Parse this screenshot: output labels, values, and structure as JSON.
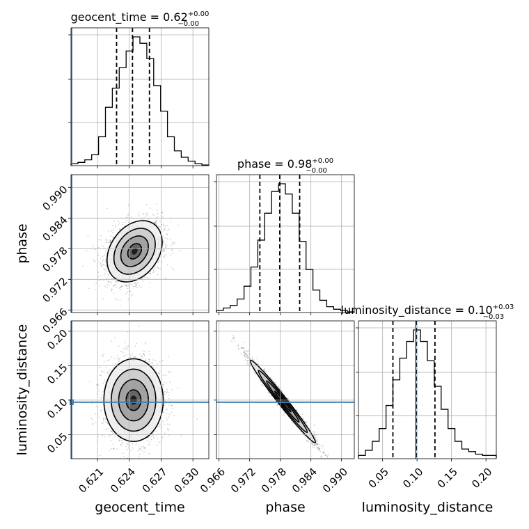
{
  "chart_data": {
    "type": "corner",
    "parameters": [
      {
        "name": "geocent_time",
        "label": "geocent_time",
        "title": "geocent_time = 0.62",
        "title_plus": "+0.00",
        "title_minus": "−0.00",
        "range": [
          0.6185,
          0.6315
        ],
        "ticks": [
          0.621,
          0.624,
          0.627,
          0.63
        ],
        "tick_labels": [
          "0.621",
          "0.624",
          "0.627",
          "0.630"
        ],
        "quantiles": [
          0.6228,
          0.6243,
          0.6259
        ],
        "truth": 0.6185,
        "hist_max": 1.0,
        "histogram": [
          0.01,
          0.02,
          0.04,
          0.08,
          0.22,
          0.45,
          0.6,
          0.76,
          0.89,
          1.0,
          0.95,
          0.83,
          0.62,
          0.42,
          0.22,
          0.11,
          0.06,
          0.03,
          0.01,
          0.0
        ]
      },
      {
        "name": "phase",
        "label": "phase",
        "title": "phase = 0.98",
        "title_plus": "+0.00",
        "title_minus": "−0.00",
        "range": [
          0.9655,
          0.9925
        ],
        "ticks": [
          0.966,
          0.972,
          0.978,
          0.984,
          0.99
        ],
        "tick_labels": [
          "0.966",
          "0.972",
          "0.978",
          "0.984",
          "0.990"
        ],
        "quantiles": [
          0.974,
          0.9779,
          0.9818
        ],
        "truth": null,
        "hist_max": 1.0,
        "histogram": [
          0.01,
          0.03,
          0.05,
          0.1,
          0.2,
          0.35,
          0.56,
          0.77,
          0.94,
          1.0,
          0.92,
          0.77,
          0.55,
          0.33,
          0.17,
          0.09,
          0.04,
          0.02,
          0.01,
          0.0
        ]
      },
      {
        "name": "luminosity_distance",
        "label": "luminosity_distance",
        "title": "luminosity_distance = 0.10",
        "title_plus": "+0.03",
        "title_minus": "−0.03",
        "range": [
          0.015,
          0.215
        ],
        "ticks": [
          0.05,
          0.1,
          0.15,
          0.2
        ],
        "tick_labels": [
          "0.05",
          "0.10",
          "0.15",
          "0.20"
        ],
        "quantiles": [
          0.065,
          0.099,
          0.126
        ],
        "truth": 0.097,
        "hist_max": 1.0,
        "histogram": [
          0.02,
          0.06,
          0.13,
          0.23,
          0.41,
          0.61,
          0.78,
          0.91,
          1.0,
          0.91,
          0.76,
          0.56,
          0.38,
          0.23,
          0.13,
          0.07,
          0.05,
          0.03,
          0.02,
          0.02
        ]
      }
    ],
    "pairs": [
      {
        "x": "geocent_time",
        "y": "phase",
        "center": [
          0.6245,
          0.9775
        ],
        "sigma": [
          0.0013,
          0.003
        ],
        "correlation": 0.3,
        "truth": [
          0.6185,
          null
        ],
        "contour_levels_sigma": [
          0.5,
          1.0,
          1.5,
          2.0
        ]
      },
      {
        "x": "geocent_time",
        "y": "luminosity_distance",
        "center": [
          0.6244,
          0.1
        ],
        "sigma": [
          0.0014,
          0.03
        ],
        "correlation": 0.0,
        "truth": [
          0.6185,
          0.097
        ],
        "contour_levels_sigma": [
          0.5,
          1.0,
          1.5,
          2.0
        ]
      },
      {
        "x": "phase",
        "y": "luminosity_distance",
        "center": [
          0.9785,
          0.098
        ],
        "sigma": [
          0.0032,
          0.03
        ],
        "correlation": -0.985,
        "truth": [
          null,
          0.097
        ],
        "contour_levels_sigma": [
          0.5,
          1.0,
          1.5,
          2.0
        ]
      }
    ],
    "truth_color": "#4682b4",
    "grid": true
  }
}
